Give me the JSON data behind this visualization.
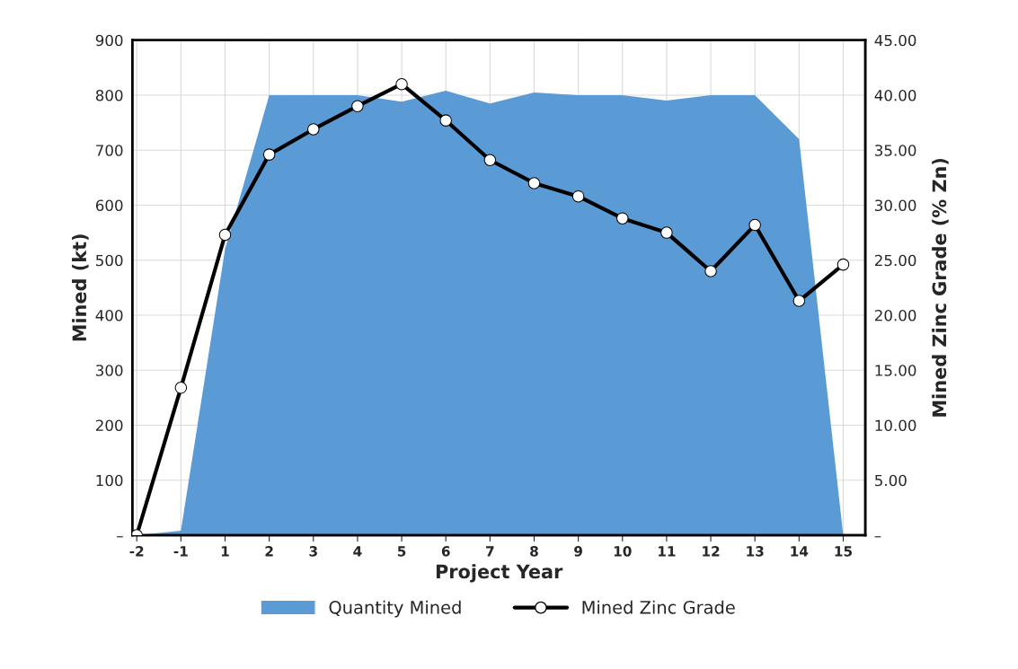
{
  "chart_data": {
    "type": "area",
    "xlabel": "Project Year",
    "ylabel": "Mined (kt)",
    "y2label": "Mined Zinc Grade (% Zn)",
    "categories": [
      "-2",
      "-1",
      "1",
      "2",
      "3",
      "4",
      "5",
      "6",
      "7",
      "8",
      "9",
      "10",
      "11",
      "12",
      "13",
      "14",
      "15"
    ],
    "series": [
      {
        "name": "Quantity Mined",
        "color": "#5b9bd5",
        "values": [
          0,
          8,
          520,
          800,
          800,
          800,
          788,
          808,
          785,
          805,
          800,
          800,
          790,
          800,
          800,
          720,
          0
        ]
      },
      {
        "name": "Mined Zinc Grade",
        "type": "line",
        "axis": "y2",
        "color": "#000000",
        "marker": "circle",
        "values": [
          0,
          13.4,
          27.3,
          34.6,
          36.9,
          39.0,
          41.0,
          37.7,
          34.1,
          32.0,
          30.8,
          28.8,
          27.5,
          24.0,
          28.2,
          21.3,
          24.6
        ]
      }
    ],
    "ylim": [
      0,
      900
    ],
    "yticks": [
      {
        "value": 0,
        "label": "–"
      },
      100,
      200,
      300,
      400,
      500,
      600,
      700,
      800,
      900
    ],
    "y2lim": [
      0,
      45
    ],
    "y2ticks": [
      {
        "value": 0,
        "label": "–"
      },
      {
        "value": 5,
        "label": "5.00"
      },
      {
        "value": 10,
        "label": "10.00"
      },
      {
        "value": 15,
        "label": "15.00"
      },
      {
        "value": 20,
        "label": "20.00"
      },
      {
        "value": 25,
        "label": "25.00"
      },
      {
        "value": 30,
        "label": "30.00"
      },
      {
        "value": 35,
        "label": "35.00"
      },
      {
        "value": 40,
        "label": "40.00"
      },
      {
        "value": 45,
        "label": "45.00"
      }
    ],
    "grid": true,
    "legend": "bottom"
  }
}
